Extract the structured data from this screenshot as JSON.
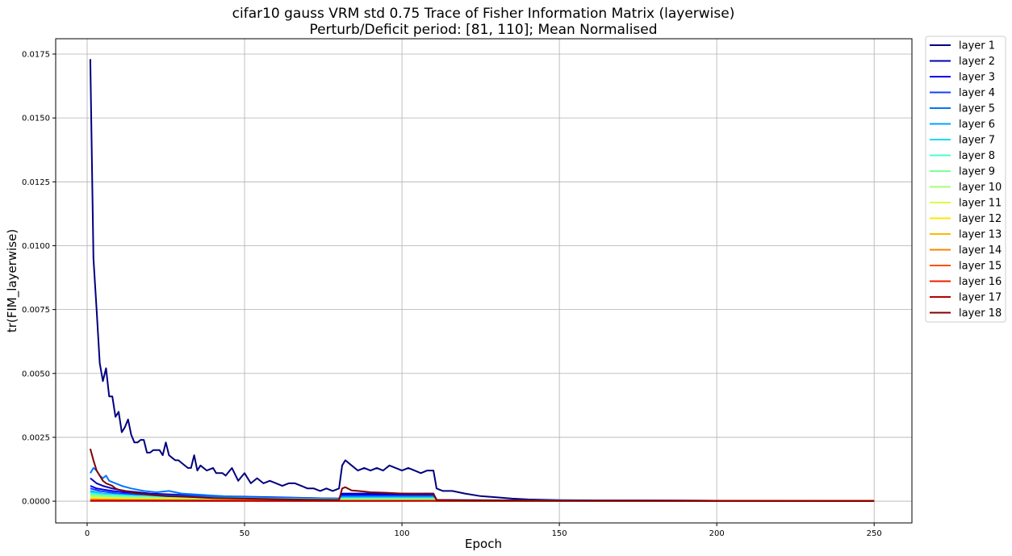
{
  "chart_data": {
    "type": "line",
    "title": "cifar10 gauss VRM std 0.75 Trace of Fisher Information Matrix (layerwise)",
    "subtitle": "Perturb/Deficit period: [81, 110]; Mean Normalised",
    "xlabel": "Epoch",
    "ylabel": "tr(FIM_layerwise)",
    "xlim": [
      -10,
      262
    ],
    "ylim": [
      -0.00085,
      0.0181
    ],
    "xticks": [
      0,
      50,
      100,
      150,
      200,
      250
    ],
    "xtick_labels": [
      "0",
      "50",
      "100",
      "150",
      "200",
      "250"
    ],
    "yticks": [
      0,
      0.0025,
      0.005,
      0.0075,
      0.01,
      0.0125,
      0.015,
      0.0175
    ],
    "ytick_labels": [
      "0.0000",
      "0.0025",
      "0.0050",
      "0.0075",
      "0.0100",
      "0.0125",
      "0.0150",
      "0.0175"
    ],
    "grid": true,
    "legend_position": "outside-right-top",
    "series": [
      {
        "name": "layer 1",
        "color": "#00007f",
        "points": [
          [
            1,
            0.0173
          ],
          [
            2,
            0.0095
          ],
          [
            3,
            0.0075
          ],
          [
            4,
            0.0054
          ],
          [
            5,
            0.0047
          ],
          [
            6,
            0.0052
          ],
          [
            7,
            0.0041
          ],
          [
            8,
            0.0041
          ],
          [
            9,
            0.0033
          ],
          [
            10,
            0.0035
          ],
          [
            11,
            0.0027
          ],
          [
            12,
            0.0029
          ],
          [
            13,
            0.0032
          ],
          [
            14,
            0.0026
          ],
          [
            15,
            0.0023
          ],
          [
            16,
            0.0023
          ],
          [
            17,
            0.0024
          ],
          [
            18,
            0.0024
          ],
          [
            19,
            0.0019
          ],
          [
            20,
            0.0019
          ],
          [
            21,
            0.002
          ],
          [
            22,
            0.002
          ],
          [
            23,
            0.002
          ],
          [
            24,
            0.0018
          ],
          [
            25,
            0.0023
          ],
          [
            26,
            0.0018
          ],
          [
            27,
            0.0017
          ],
          [
            28,
            0.0016
          ],
          [
            29,
            0.0016
          ],
          [
            30,
            0.0015
          ],
          [
            32,
            0.0013
          ],
          [
            33,
            0.0013
          ],
          [
            34,
            0.0018
          ],
          [
            35,
            0.0012
          ],
          [
            36,
            0.0014
          ],
          [
            38,
            0.0012
          ],
          [
            40,
            0.0013
          ],
          [
            41,
            0.0011
          ],
          [
            43,
            0.0011
          ],
          [
            44,
            0.001
          ],
          [
            46,
            0.0013
          ],
          [
            48,
            0.0008
          ],
          [
            50,
            0.0011
          ],
          [
            52,
            0.0007
          ],
          [
            54,
            0.0009
          ],
          [
            56,
            0.0007
          ],
          [
            58,
            0.0008
          ],
          [
            60,
            0.0007
          ],
          [
            62,
            0.0006
          ],
          [
            64,
            0.0007
          ],
          [
            66,
            0.0007
          ],
          [
            68,
            0.0006
          ],
          [
            70,
            0.0005
          ],
          [
            72,
            0.0005
          ],
          [
            74,
            0.0004
          ],
          [
            76,
            0.0005
          ],
          [
            78,
            0.0004
          ],
          [
            80,
            0.0005
          ],
          [
            81,
            0.0014
          ],
          [
            82,
            0.0016
          ],
          [
            84,
            0.0014
          ],
          [
            86,
            0.0012
          ],
          [
            88,
            0.0013
          ],
          [
            90,
            0.0012
          ],
          [
            92,
            0.0013
          ],
          [
            94,
            0.0012
          ],
          [
            96,
            0.0014
          ],
          [
            98,
            0.0013
          ],
          [
            100,
            0.0012
          ],
          [
            102,
            0.0013
          ],
          [
            104,
            0.0012
          ],
          [
            106,
            0.0011
          ],
          [
            108,
            0.0012
          ],
          [
            110,
            0.0012
          ],
          [
            111,
            0.0005
          ],
          [
            113,
            0.0004
          ],
          [
            116,
            0.0004
          ],
          [
            120,
            0.0003
          ],
          [
            125,
            0.0002
          ],
          [
            130,
            0.00015
          ],
          [
            135,
            0.0001
          ],
          [
            140,
            7e-05
          ],
          [
            150,
            4e-05
          ],
          [
            170,
            3e-05
          ],
          [
            200,
            2e-05
          ],
          [
            250,
            1e-05
          ]
        ]
      },
      {
        "name": "layer 2",
        "color": "#0000b8",
        "points": [
          [
            1,
            0.0009
          ],
          [
            3,
            0.0007
          ],
          [
            5,
            0.0006
          ],
          [
            8,
            0.0005
          ],
          [
            12,
            0.0004
          ],
          [
            20,
            0.0003
          ],
          [
            30,
            0.00025
          ],
          [
            40,
            0.0002
          ],
          [
            60,
            0.00015
          ],
          [
            80,
            0.0001
          ],
          [
            81,
            0.0003
          ],
          [
            90,
            0.0003
          ],
          [
            100,
            0.0003
          ],
          [
            110,
            0.0003
          ],
          [
            111,
            5e-05
          ],
          [
            130,
            3e-05
          ],
          [
            250,
            1e-05
          ]
        ]
      },
      {
        "name": "layer 3",
        "color": "#0000f1",
        "points": [
          [
            1,
            0.0006
          ],
          [
            3,
            0.0005
          ],
          [
            8,
            0.0004
          ],
          [
            15,
            0.0003
          ],
          [
            30,
            0.0002
          ],
          [
            60,
            0.00012
          ],
          [
            80,
            0.0001
          ],
          [
            81,
            0.00025
          ],
          [
            110,
            0.00025
          ],
          [
            111,
            4e-05
          ],
          [
            250,
            1e-05
          ]
        ]
      },
      {
        "name": "layer 4",
        "color": "#0f40ff",
        "points": [
          [
            1,
            0.0005
          ],
          [
            4,
            0.0004
          ],
          [
            10,
            0.0003
          ],
          [
            20,
            0.00025
          ],
          [
            40,
            0.00018
          ],
          [
            80,
            0.0001
          ],
          [
            81,
            0.0002
          ],
          [
            110,
            0.0002
          ],
          [
            111,
            4e-05
          ],
          [
            250,
            1e-05
          ]
        ]
      },
      {
        "name": "layer 5",
        "color": "#0074ff",
        "points": [
          [
            1,
            0.0011
          ],
          [
            2,
            0.0013
          ],
          [
            3,
            0.0012
          ],
          [
            4,
            0.001
          ],
          [
            5,
            0.0009
          ],
          [
            6,
            0.001
          ],
          [
            7,
            0.0008
          ],
          [
            9,
            0.0007
          ],
          [
            11,
            0.0006
          ],
          [
            14,
            0.0005
          ],
          [
            18,
            0.0004
          ],
          [
            22,
            0.00035
          ],
          [
            26,
            0.0004
          ],
          [
            30,
            0.0003
          ],
          [
            40,
            0.00022
          ],
          [
            50,
            0.00015
          ],
          [
            60,
            0.00012
          ],
          [
            70,
            0.0001
          ],
          [
            80,
            0.0001
          ],
          [
            81,
            0.00018
          ],
          [
            110,
            0.00018
          ],
          [
            111,
            3e-05
          ],
          [
            250,
            1e-05
          ]
        ]
      },
      {
        "name": "layer 6",
        "color": "#00a4ff",
        "points": [
          [
            1,
            0.0004
          ],
          [
            5,
            0.0003
          ],
          [
            15,
            0.00022
          ],
          [
            40,
            0.00014
          ],
          [
            80,
            8e-05
          ],
          [
            81,
            0.00015
          ],
          [
            110,
            0.00015
          ],
          [
            111,
            3e-05
          ],
          [
            250,
            1e-05
          ]
        ]
      },
      {
        "name": "layer 7",
        "color": "#1adcf7",
        "points": [
          [
            1,
            0.00035
          ],
          [
            5,
            0.00028
          ],
          [
            15,
            0.0002
          ],
          [
            40,
            0.00012
          ],
          [
            80,
            7e-05
          ],
          [
            81,
            0.00012
          ],
          [
            110,
            0.00012
          ],
          [
            111,
            2e-05
          ],
          [
            250,
            1e-05
          ]
        ]
      },
      {
        "name": "layer 8",
        "color": "#4affcd",
        "points": [
          [
            1,
            0.0003
          ],
          [
            5,
            0.00024
          ],
          [
            15,
            0.00018
          ],
          [
            40,
            0.0001
          ],
          [
            80,
            6e-05
          ],
          [
            81,
            0.0001
          ],
          [
            110,
            0.0001
          ],
          [
            111,
            2e-05
          ],
          [
            250,
            1e-05
          ]
        ]
      },
      {
        "name": "layer 9",
        "color": "#7dff9a",
        "points": [
          [
            1,
            0.00025
          ],
          [
            5,
            0.0002
          ],
          [
            15,
            0.00015
          ],
          [
            40,
            9e-05
          ],
          [
            80,
            5e-05
          ],
          [
            81,
            8e-05
          ],
          [
            110,
            8e-05
          ],
          [
            111,
            2e-05
          ],
          [
            250,
            1e-05
          ]
        ]
      },
      {
        "name": "layer 10",
        "color": "#a4ff73",
        "points": [
          [
            1,
            0.0002
          ],
          [
            5,
            0.00016
          ],
          [
            15,
            0.00012
          ],
          [
            40,
            7e-05
          ],
          [
            80,
            4e-05
          ],
          [
            81,
            6e-05
          ],
          [
            110,
            6e-05
          ],
          [
            111,
            1e-05
          ],
          [
            250,
            1e-05
          ]
        ]
      },
      {
        "name": "layer 11",
        "color": "#d7ff40",
        "points": [
          [
            1,
            0.00015
          ],
          [
            5,
            0.00012
          ],
          [
            15,
            9e-05
          ],
          [
            40,
            5e-05
          ],
          [
            80,
            3e-05
          ],
          [
            110,
            4e-05
          ],
          [
            111,
            1e-05
          ],
          [
            250,
            1e-05
          ]
        ]
      },
      {
        "name": "layer 12",
        "color": "#ffe600",
        "points": [
          [
            1,
            0.0001
          ],
          [
            10,
            8e-05
          ],
          [
            40,
            4e-05
          ],
          [
            80,
            2e-05
          ],
          [
            110,
            3e-05
          ],
          [
            111,
            1e-05
          ],
          [
            250,
            1e-05
          ]
        ]
      },
      {
        "name": "layer 13",
        "color": "#ffb900",
        "points": [
          [
            1,
            8e-05
          ],
          [
            10,
            6e-05
          ],
          [
            40,
            3e-05
          ],
          [
            80,
            2e-05
          ],
          [
            110,
            2e-05
          ],
          [
            111,
            1e-05
          ],
          [
            250,
            1e-05
          ]
        ]
      },
      {
        "name": "layer 14",
        "color": "#ff8200",
        "points": [
          [
            1,
            5e-05
          ],
          [
            20,
            4e-05
          ],
          [
            80,
            2e-05
          ],
          [
            110,
            2e-05
          ],
          [
            111,
            1e-05
          ],
          [
            250,
            1e-05
          ]
        ]
      },
      {
        "name": "layer 15",
        "color": "#ff4f00",
        "points": [
          [
            1,
            3e-05
          ],
          [
            80,
            2e-05
          ],
          [
            110,
            2e-05
          ],
          [
            250,
            1e-05
          ]
        ]
      },
      {
        "name": "layer 16",
        "color": "#f11d00",
        "points": [
          [
            1,
            2e-05
          ],
          [
            80,
            1e-05
          ],
          [
            110,
            2e-05
          ],
          [
            250,
            1e-05
          ]
        ]
      },
      {
        "name": "layer 17",
        "color": "#b80000",
        "points": [
          [
            1,
            1e-05
          ],
          [
            250,
            1e-05
          ]
        ]
      },
      {
        "name": "layer 18",
        "color": "#7f0000",
        "points": [
          [
            1,
            0.00205
          ],
          [
            2,
            0.0016
          ],
          [
            3,
            0.0012
          ],
          [
            4,
            0.001
          ],
          [
            5,
            0.0008
          ],
          [
            6,
            0.0007
          ],
          [
            7,
            0.00065
          ],
          [
            8,
            0.0006
          ],
          [
            9,
            0.0005
          ],
          [
            10,
            0.00045
          ],
          [
            12,
            0.0004
          ],
          [
            14,
            0.00035
          ],
          [
            16,
            0.0003
          ],
          [
            18,
            0.00028
          ],
          [
            20,
            0.00025
          ],
          [
            25,
            0.0002
          ],
          [
            30,
            0.00018
          ],
          [
            35,
            0.00015
          ],
          [
            40,
            0.00012
          ],
          [
            50,
            0.0001
          ],
          [
            60,
            8e-05
          ],
          [
            70,
            6e-05
          ],
          [
            80,
            5e-05
          ],
          [
            81,
            0.0005
          ],
          [
            82,
            0.00055
          ],
          [
            84,
            0.00042
          ],
          [
            86,
            0.0004
          ],
          [
            88,
            0.00038
          ],
          [
            90,
            0.00035
          ],
          [
            95,
            0.00033
          ],
          [
            100,
            0.0003
          ],
          [
            105,
            0.00028
          ],
          [
            108,
            0.0003
          ],
          [
            110,
            0.00027
          ],
          [
            111,
            5e-05
          ],
          [
            120,
            3e-05
          ],
          [
            150,
            2e-05
          ],
          [
            250,
            1e-05
          ]
        ]
      }
    ]
  }
}
